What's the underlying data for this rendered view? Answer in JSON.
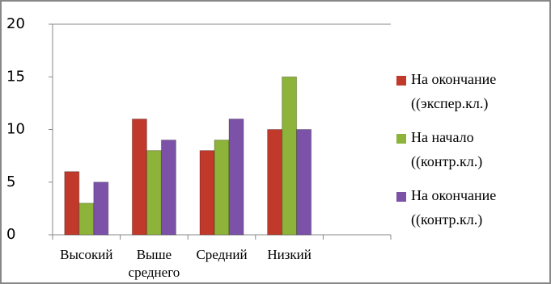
{
  "chart_data": {
    "type": "bar",
    "categories": [
      "Высокий",
      "Выше среднего",
      "Средний",
      "Низкий",
      null
    ],
    "series": [
      {
        "name": "На окончание (экспер.кл.)",
        "color": "#c0392b",
        "values": [
          6,
          11,
          8,
          10,
          null
        ]
      },
      {
        "name": "На начало (контр.кл.)",
        "color": "#8db33a",
        "values": [
          3,
          8,
          9,
          15,
          null
        ]
      },
      {
        "name": "На окончание (контр.кл.)",
        "color": "#7b52a8",
        "values": [
          5,
          9,
          11,
          10,
          null
        ]
      }
    ],
    "ylim": [
      0,
      20
    ],
    "yticks": [
      0,
      5,
      10,
      15,
      20
    ],
    "legend": "right"
  }
}
